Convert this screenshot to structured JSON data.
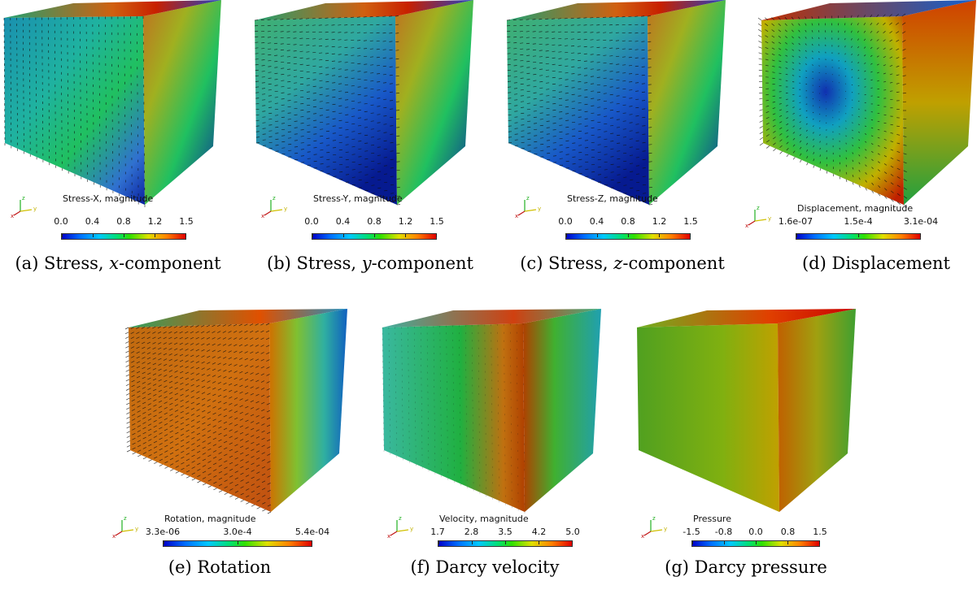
{
  "colormap": [
    "#0000c8",
    "#0070ff",
    "#00c8ff",
    "#00e070",
    "#30e000",
    "#e0e000",
    "#ff8000",
    "#e00000"
  ],
  "panels": [
    {
      "id": "a",
      "scalarbar_title": "Stress-X, magnitude",
      "ticks": [
        "0.0",
        "0.4",
        "0.8",
        "1.2",
        "1.5"
      ],
      "caption_prefix": "(a) Stress, ",
      "caption_var": "x",
      "caption_suffix": "-component",
      "arrows": "dense-vertical"
    },
    {
      "id": "b",
      "scalarbar_title": "Stress-Y, magnitude",
      "ticks": [
        "0.0",
        "0.4",
        "0.8",
        "1.2",
        "1.5"
      ],
      "caption_prefix": "(b) Stress, ",
      "caption_var": "y",
      "caption_suffix": "-component",
      "arrows": "horizontal"
    },
    {
      "id": "c",
      "scalarbar_title": "Stress-Z, magnitude",
      "ticks": [
        "0.0",
        "0.4",
        "0.8",
        "1.2",
        "1.5"
      ],
      "caption_prefix": "(c) Stress, ",
      "caption_var": "z",
      "caption_suffix": "-component",
      "arrows": "horizontal"
    },
    {
      "id": "d",
      "scalarbar_title": "Displacement, magnitude",
      "ticks": [
        "1.6e-07",
        "1.5e-4",
        "3.1e-04"
      ],
      "caption_prefix": "(d) Displacement",
      "caption_var": "",
      "caption_suffix": "",
      "arrows": "outward"
    },
    {
      "id": "e",
      "scalarbar_title": "Rotation, magnitude",
      "ticks": [
        "3.3e-06",
        "3.0e-4",
        "5.4e-04"
      ],
      "caption_prefix": "(e) Rotation",
      "caption_var": "",
      "caption_suffix": "",
      "arrows": "front-dense"
    },
    {
      "id": "f",
      "scalarbar_title": "Velocity, magnitude",
      "ticks": [
        "1.7",
        "2.8",
        "3.5",
        "4.2",
        "5.0"
      ],
      "caption_prefix": "(f) Darcy velocity",
      "caption_var": "",
      "caption_suffix": "",
      "arrows": "light"
    },
    {
      "id": "g",
      "scalarbar_title": "Pressure",
      "ticks": [
        "-1.5",
        "-0.8",
        "0.0",
        "0.8",
        "1.5"
      ],
      "caption_prefix": "(g) Darcy pressure",
      "caption_var": "",
      "caption_suffix": "",
      "arrows": "none"
    }
  ],
  "axes_labels": {
    "x": "x",
    "y": "y",
    "z": "z"
  }
}
